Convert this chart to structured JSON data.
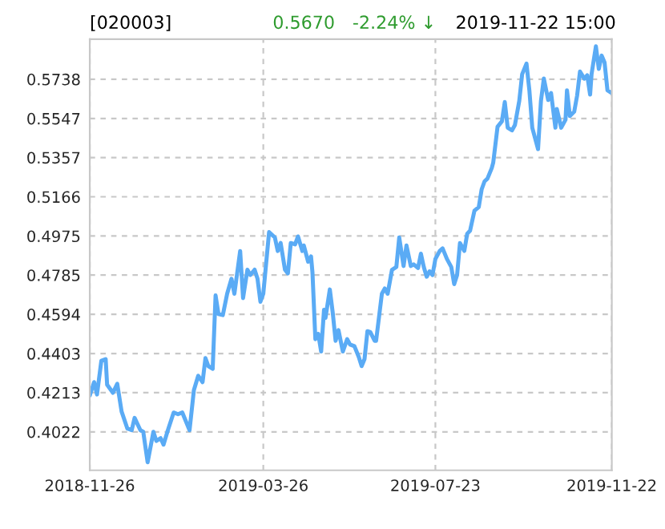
{
  "chart_data": {
    "type": "line",
    "title": "[020003]",
    "annotations": [
      "0.5670",
      "-2.24% ↓",
      "2019-11-22 15:00"
    ],
    "x": [
      "2018-11-26",
      "2018-11-29",
      "2018-12-01",
      "2018-12-04",
      "2018-12-07",
      "2018-12-08",
      "2018-12-12",
      "2018-12-15",
      "2018-12-18",
      "2018-12-22",
      "2018-12-25",
      "2018-12-27",
      "2018-12-31",
      "2019-01-02",
      "2019-01-05",
      "2019-01-09",
      "2019-01-11",
      "2019-01-14",
      "2019-01-16",
      "2019-01-19",
      "2019-01-23",
      "2019-01-26",
      "2019-01-29",
      "2019-02-03",
      "2019-02-06",
      "2019-02-09",
      "2019-02-12",
      "2019-02-14",
      "2019-02-16",
      "2019-02-19",
      "2019-02-21",
      "2019-02-23",
      "2019-02-26",
      "2019-03-01",
      "2019-03-04",
      "2019-03-06",
      "2019-03-10",
      "2019-03-12",
      "2019-03-15",
      "2019-03-17",
      "2019-03-20",
      "2019-03-22",
      "2019-03-24",
      "2019-03-26",
      "2019-03-30",
      "2019-04-03",
      "2019-04-05",
      "2019-04-07",
      "2019-04-10",
      "2019-04-12",
      "2019-04-14",
      "2019-04-17",
      "2019-04-19",
      "2019-04-22",
      "2019-04-23",
      "2019-04-26",
      "2019-04-28",
      "2019-04-29",
      "2019-05-01",
      "2019-05-03",
      "2019-05-05",
      "2019-05-07",
      "2019-05-08",
      "2019-05-11",
      "2019-05-13",
      "2019-05-15",
      "2019-05-17",
      "2019-05-20",
      "2019-05-23",
      "2019-05-25",
      "2019-05-28",
      "2019-05-31",
      "2019-06-02",
      "2019-06-04",
      "2019-06-06",
      "2019-06-08",
      "2019-06-11",
      "2019-06-12",
      "2019-06-16",
      "2019-06-18",
      "2019-06-20",
      "2019-06-23",
      "2019-06-26",
      "2019-06-28",
      "2019-07-01",
      "2019-07-03",
      "2019-07-06",
      "2019-07-08",
      "2019-07-11",
      "2019-07-13",
      "2019-07-15",
      "2019-07-17",
      "2019-07-19",
      "2019-07-21",
      "2019-07-23",
      "2019-07-26",
      "2019-07-28",
      "2019-07-31",
      "2019-08-03",
      "2019-08-05",
      "2019-08-07",
      "2019-08-09",
      "2019-08-12",
      "2019-08-14",
      "2019-08-16",
      "2019-08-19",
      "2019-08-22",
      "2019-08-24",
      "2019-08-26",
      "2019-08-28",
      "2019-08-31",
      "2019-09-01",
      "2019-09-04",
      "2019-09-07",
      "2019-09-09",
      "2019-09-11",
      "2019-09-14",
      "2019-09-16",
      "2019-09-19",
      "2019-09-21",
      "2019-09-24",
      "2019-09-26",
      "2019-09-28",
      "2019-10-02",
      "2019-10-04",
      "2019-10-06",
      "2019-10-09",
      "2019-10-11",
      "2019-10-14",
      "2019-10-15",
      "2019-10-18",
      "2019-10-21",
      "2019-10-22",
      "2019-10-24",
      "2019-10-27",
      "2019-10-29",
      "2019-10-31",
      "2019-11-03",
      "2019-11-05",
      "2019-11-07",
      "2019-11-08",
      "2019-11-11",
      "2019-11-13",
      "2019-11-15",
      "2019-11-17",
      "2019-11-19",
      "2019-11-22"
    ],
    "series": [
      {
        "color": "#5aabf5",
        "values": [
          0.4199,
          0.4264,
          0.4204,
          0.4368,
          0.4376,
          0.4251,
          0.4212,
          0.4256,
          0.4121,
          0.4038,
          0.403,
          0.409,
          0.403,
          0.4022,
          0.3874,
          0.4022,
          0.3978,
          0.3991,
          0.396,
          0.403,
          0.4116,
          0.4108,
          0.4116,
          0.403,
          0.4225,
          0.4295,
          0.4264,
          0.4381,
          0.4342,
          0.4329,
          0.4686,
          0.4595,
          0.459,
          0.4694,
          0.4767,
          0.4694,
          0.4902,
          0.4673,
          0.4811,
          0.4785,
          0.4811,
          0.4767,
          0.4655,
          0.4694,
          0.4994,
          0.4968,
          0.4902,
          0.4941,
          0.4811,
          0.4793,
          0.4941,
          0.4934,
          0.4973,
          0.4902,
          0.4929,
          0.485,
          0.4876,
          0.4798,
          0.4473,
          0.4499,
          0.4413,
          0.4616,
          0.4577,
          0.4715,
          0.4603,
          0.4465,
          0.4517,
          0.4413,
          0.4473,
          0.4447,
          0.4439,
          0.4387,
          0.4342,
          0.4376,
          0.4512,
          0.4507,
          0.4465,
          0.4465,
          0.4694,
          0.472,
          0.4694,
          0.4811,
          0.4824,
          0.4968,
          0.4829,
          0.4929,
          0.4829,
          0.4837,
          0.4819,
          0.4889,
          0.4824,
          0.4777,
          0.4803,
          0.4785,
          0.4863,
          0.4902,
          0.4915,
          0.4863,
          0.4824,
          0.4741,
          0.4785,
          0.4941,
          0.4902,
          0.4986,
          0.5001,
          0.5098,
          0.5116,
          0.5202,
          0.5241,
          0.5254,
          0.5306,
          0.5332,
          0.5507,
          0.5533,
          0.5627,
          0.5502,
          0.5489,
          0.5515,
          0.5632,
          0.5762,
          0.5814,
          0.5684,
          0.5502,
          0.5398,
          0.5632,
          0.5741,
          0.5637,
          0.5671,
          0.5502,
          0.5593,
          0.5502,
          0.5541,
          0.5684,
          0.5559,
          0.558,
          0.5658,
          0.5775,
          0.5741,
          0.5757,
          0.5663,
          0.5762,
          0.5898,
          0.5788,
          0.5853,
          0.5819,
          0.5684,
          0.567
        ]
      }
    ],
    "xlim": [
      "2018-11-26",
      "2019-11-22"
    ],
    "xticks": [
      "2018-11-26",
      "2019-03-26",
      "2019-07-23",
      "2019-11-22"
    ],
    "ylim": [
      0.3835,
      0.5933
    ],
    "yticks": [
      0.4022,
      0.4213,
      0.4403,
      0.4594,
      0.4785,
      0.4975,
      0.5166,
      0.5357,
      0.5547,
      0.5738
    ],
    "grid": true,
    "line_style": "solid",
    "legend": false
  }
}
